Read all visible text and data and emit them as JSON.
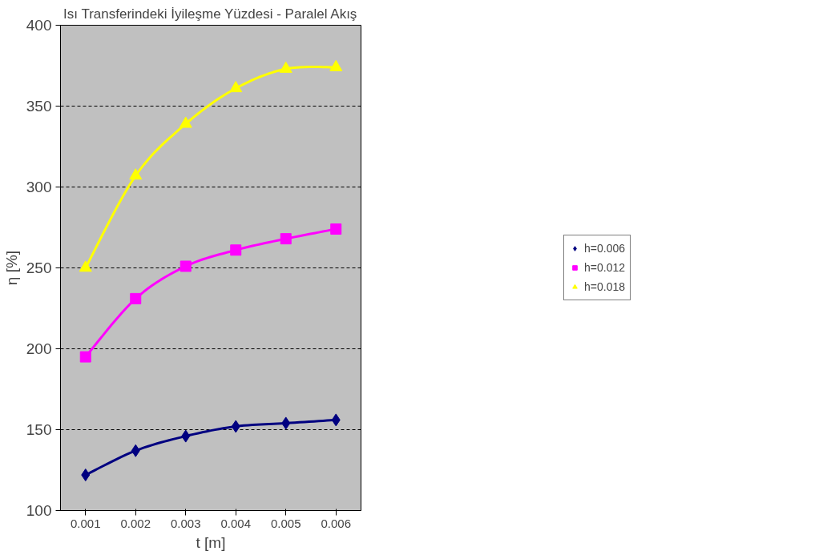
{
  "chart_data": {
    "type": "line",
    "title": "Isı Transferindeki İyileşme Yüzdesi - Paralel Akış",
    "xlabel": "t [m]",
    "ylabel": "η [%]",
    "categories": [
      "0.001",
      "0.002",
      "0.003",
      "0.004",
      "0.005",
      "0.006"
    ],
    "series": [
      {
        "name": "h=0.006",
        "color": "#000080",
        "marker": "diamond",
        "values": [
          122,
          137,
          146,
          152,
          154,
          156
        ]
      },
      {
        "name": "h=0.012",
        "color": "#ff00ff",
        "marker": "square",
        "values": [
          195,
          231,
          251,
          261,
          268,
          274
        ]
      },
      {
        "name": "h=0.018",
        "color": "#ffff00",
        "marker": "triangle",
        "values": [
          250,
          307,
          339,
          361,
          373,
          374
        ]
      }
    ],
    "ylim": [
      100,
      400
    ],
    "yticks": [
      100,
      150,
      200,
      250,
      300,
      350,
      400
    ],
    "grid": "y",
    "legend": "right",
    "line_style": "solid"
  }
}
